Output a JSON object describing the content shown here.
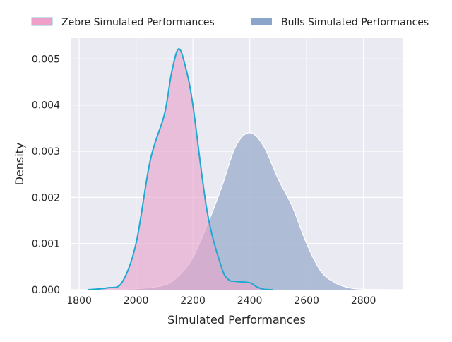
{
  "chart_data": {
    "type": "area",
    "title": "",
    "xlabel": "Simulated Performances",
    "ylabel": "Density",
    "xlim": [
      1770,
      2940
    ],
    "ylim": [
      0,
      0.00545
    ],
    "xticks": [
      "1800",
      "2000",
      "2200",
      "2400",
      "2600",
      "2800"
    ],
    "xtick_values": [
      1800,
      2000,
      2200,
      2400,
      2600,
      2800
    ],
    "yticks": [
      "0.000",
      "0.001",
      "0.002",
      "0.003",
      "0.004",
      "0.005"
    ],
    "ytick_values": [
      0,
      0.001,
      0.002,
      0.003,
      0.004,
      0.005
    ],
    "grid": true,
    "legend_position": "top-center",
    "series": [
      {
        "name": "Bulls Simulated Performances",
        "fill": "#a4b4d0",
        "legend_color": "#8aa5c9",
        "line": "#ffffff",
        "x": [
          1850,
          2000,
          2100,
          2150,
          2200,
          2250,
          2300,
          2350,
          2400,
          2450,
          2500,
          2550,
          2600,
          2650,
          2700,
          2750,
          2800,
          2890
        ],
        "y": [
          0,
          2e-05,
          0.0001,
          0.0003,
          0.0007,
          0.0014,
          0.0022,
          0.0031,
          0.0034,
          0.0031,
          0.0024,
          0.0018,
          0.001,
          0.0004,
          0.00015,
          4e-05,
          1e-05,
          0
        ]
      },
      {
        "name": "Zebre Simulated Performances",
        "fill": "#e8a6cc",
        "legend_color": "#f0a0c8",
        "line": "#1fa8d0",
        "x": [
          1830,
          1900,
          1950,
          2000,
          2050,
          2100,
          2125,
          2150,
          2175,
          2200,
          2250,
          2300,
          2325,
          2350,
          2400,
          2425,
          2450,
          2480
        ],
        "y": [
          0,
          4e-05,
          0.00015,
          0.001,
          0.0028,
          0.0038,
          0.0047,
          0.00522,
          0.0048,
          0.004,
          0.0017,
          0.0005,
          0.00022,
          0.00018,
          0.00015,
          6e-05,
          1e-05,
          0
        ]
      }
    ]
  }
}
